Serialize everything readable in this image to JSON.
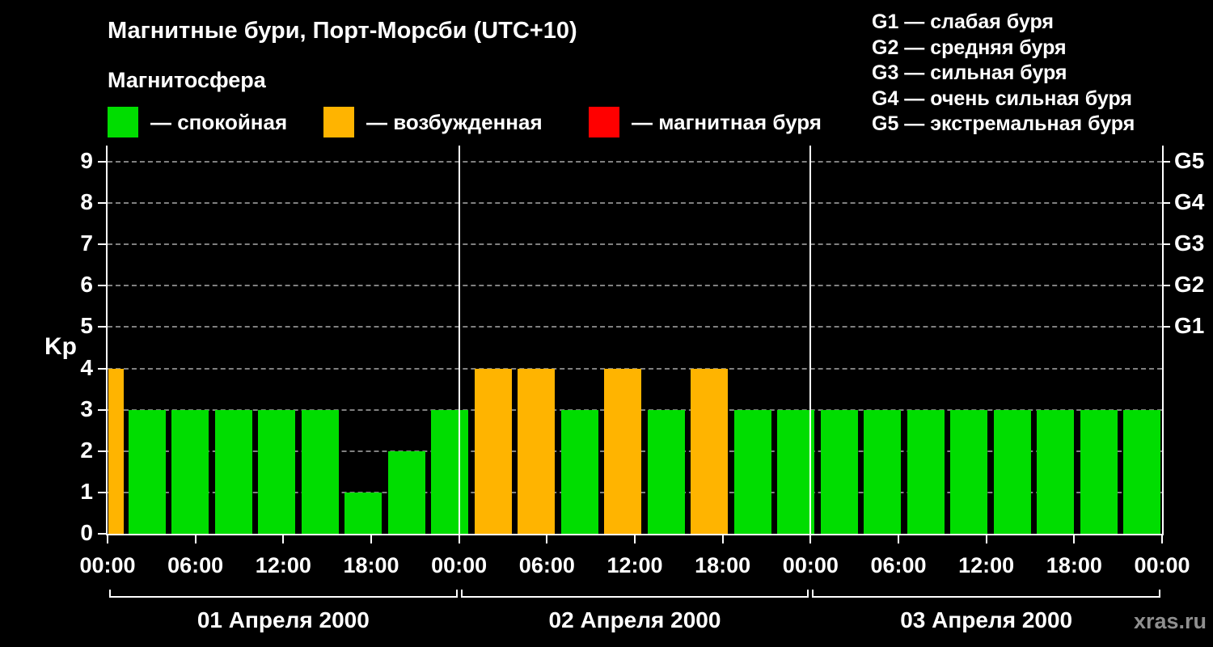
{
  "title": "Магнитные бури, Порт-Морсби (UTC+10)",
  "subtitle": "Магнитосфера",
  "watermark": "xras.ru",
  "legend": {
    "items": [
      {
        "name": "calm",
        "label": "— спокойная",
        "color": "#00dd00"
      },
      {
        "name": "excited",
        "label": "— возбужденная",
        "color": "#ffb400"
      },
      {
        "name": "storm",
        "label": "— магнитная буря",
        "color": "#ff0000"
      }
    ]
  },
  "g_legend": [
    "G1 — слабая буря",
    "G2 — средняя буря",
    "G3 — сильная буря",
    "G4 — очень сильная буря",
    "G5 — экстремальная буря"
  ],
  "chart_data": {
    "type": "bar",
    "title": "Магнитные бури, Порт-Морсби (UTC+10)",
    "ylabel": "Kp",
    "ylim": [
      0,
      9
    ],
    "yticks": [
      0,
      1,
      2,
      3,
      4,
      5,
      6,
      7,
      8,
      9
    ],
    "right_axis": [
      {
        "label": "G1",
        "kp": 5
      },
      {
        "label": "G2",
        "kp": 6
      },
      {
        "label": "G3",
        "kp": 7
      },
      {
        "label": "G4",
        "kp": 8
      },
      {
        "label": "G5",
        "kp": 9
      }
    ],
    "x_ticks": [
      "00:00",
      "06:00",
      "12:00",
      "18:00",
      "00:00",
      "06:00",
      "12:00",
      "18:00",
      "00:00",
      "06:00",
      "12:00",
      "18:00",
      "00:00"
    ],
    "days": [
      "01 Апреля 2000",
      "02 Апреля 2000",
      "03 Апреля 2000"
    ],
    "bar_interval_hours": 3,
    "values": [
      4,
      3,
      3,
      3,
      3,
      3,
      1,
      2,
      3,
      4,
      4,
      3,
      4,
      3,
      4,
      3,
      3,
      3,
      3,
      3,
      3,
      3,
      3,
      3,
      3
    ],
    "first_bar_clipped": true,
    "colors": {
      "calm": "#00dd00",
      "excited": "#ffb400",
      "storm": "#ff0000"
    },
    "color_rule": {
      "calm_max_kp": 3,
      "excited_kp": 4,
      "storm_min_kp": 5
    },
    "grid": "dashed horizontal line at each Kp level",
    "legend_position": "top"
  }
}
